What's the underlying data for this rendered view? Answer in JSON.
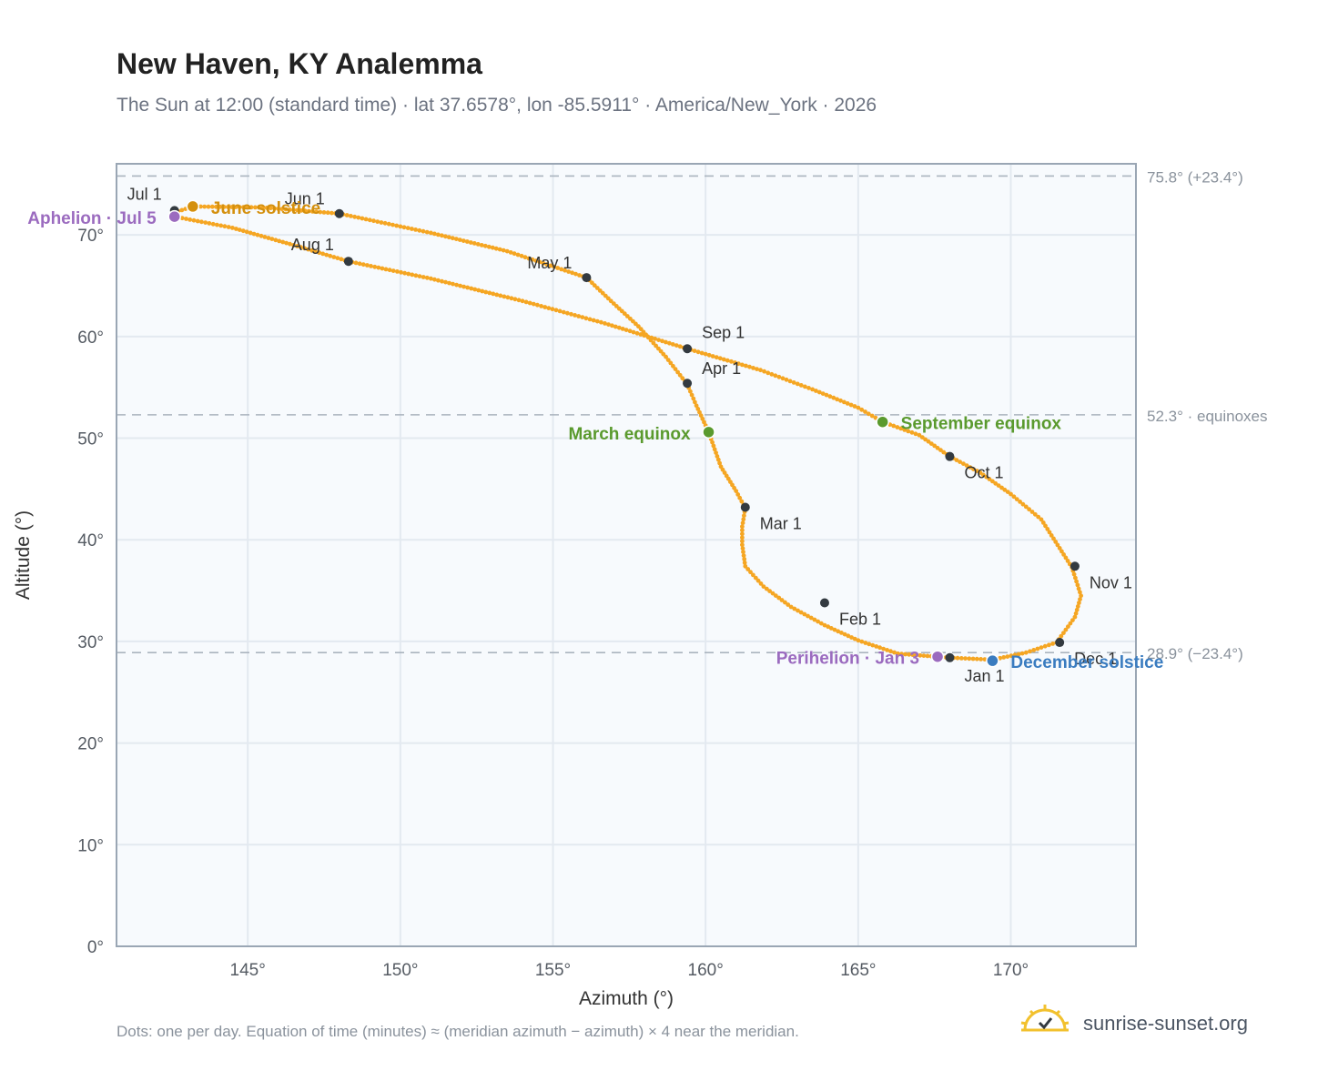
{
  "header": {
    "title": "New Haven, KY Analemma",
    "subtitle": "The Sun at 12:00 (standard time) · lat 37.6578°, lon -85.5911° · America/New_York · 2026"
  },
  "footer": {
    "note": "Dots: one per day. Equation of time (minutes) ≈ (meridian azimuth − azimuth) × 4 near the meridian.",
    "brand": "sunrise-sunset.org"
  },
  "colors": {
    "curve": "#f5a623",
    "month_dot": "#333a40",
    "solstice_june": "#d4900e",
    "solstice_december": "#3a7cc0",
    "equinox": "#5a9a2e",
    "apsis": "#9b6bbf",
    "plot_bg": "#f7fafd",
    "grid": "#e3e9f0",
    "frame": "#9aa6b4",
    "ref_line": "#aab4be"
  },
  "chart_data": {
    "type": "scatter",
    "xlabel": "Azimuth (°)",
    "ylabel": "Altitude (°)",
    "xlim": [
      140.7,
      174.1
    ],
    "ylim": [
      0,
      77
    ],
    "xticks": [
      145,
      150,
      155,
      160,
      165,
      170
    ],
    "xtick_labels": [
      "145°",
      "150°",
      "155°",
      "160°",
      "165°",
      "170°"
    ],
    "yticks": [
      0,
      10,
      20,
      30,
      40,
      50,
      60,
      70
    ],
    "ytick_labels": [
      "0°",
      "10°",
      "20°",
      "30°",
      "40°",
      "50°",
      "60°",
      "70°"
    ],
    "grid": true,
    "reference_lines": [
      {
        "y": 75.8,
        "label": "75.8° (+23.4°)"
      },
      {
        "y": 52.3,
        "label": "52.3° · equinoxes"
      },
      {
        "y": 28.9,
        "label": "28.9° (−23.4°)"
      }
    ],
    "series": [
      {
        "points_note": "one dot per day",
        "path": [
          [
            168.0,
            28.4
          ],
          [
            166.3,
            28.8
          ],
          [
            165.0,
            30.1
          ],
          [
            163.9,
            31.6
          ],
          [
            162.8,
            33.4
          ],
          [
            161.9,
            35.4
          ],
          [
            161.3,
            37.4
          ],
          [
            161.2,
            39.5
          ],
          [
            161.2,
            41.3
          ],
          [
            161.3,
            43.1
          ],
          [
            161.0,
            44.8
          ],
          [
            160.5,
            47.2
          ],
          [
            160.1,
            50.6
          ],
          [
            159.7,
            53.2
          ],
          [
            159.4,
            55.3
          ],
          [
            158.7,
            58.0
          ],
          [
            157.8,
            61.0
          ],
          [
            156.9,
            63.5
          ],
          [
            156.1,
            65.8
          ],
          [
            153.5,
            68.4
          ],
          [
            151.0,
            70.2
          ],
          [
            148.0,
            72.1
          ],
          [
            145.5,
            72.7
          ],
          [
            143.2,
            72.8
          ],
          [
            142.6,
            72.2
          ],
          [
            142.6,
            71.8
          ],
          [
            144.5,
            70.7
          ],
          [
            146.5,
            69.0
          ],
          [
            148.3,
            67.4
          ],
          [
            151.0,
            65.7
          ],
          [
            154.0,
            63.5
          ],
          [
            156.7,
            61.3
          ],
          [
            159.4,
            58.8
          ],
          [
            161.8,
            56.7
          ],
          [
            163.5,
            54.8
          ],
          [
            165.0,
            53.0
          ],
          [
            165.8,
            51.6
          ],
          [
            167.0,
            50.3
          ],
          [
            168.0,
            48.2
          ],
          [
            169.0,
            46.6
          ],
          [
            170.0,
            44.5
          ],
          [
            171.0,
            42.0
          ],
          [
            172.0,
            37.3
          ],
          [
            172.3,
            34.5
          ],
          [
            172.1,
            32.4
          ],
          [
            171.5,
            29.9
          ],
          [
            170.5,
            28.9
          ],
          [
            169.4,
            28.2
          ],
          [
            168.0,
            28.4
          ]
        ]
      }
    ],
    "month_markers": [
      {
        "label": "Jan 1",
        "az": 168.0,
        "alt": 28.4
      },
      {
        "label": "Feb 1",
        "az": 163.9,
        "alt": 33.8
      },
      {
        "label": "Mar 1",
        "az": 161.3,
        "alt": 43.2
      },
      {
        "label": "Apr 1",
        "az": 159.4,
        "alt": 55.4
      },
      {
        "label": "May 1",
        "az": 156.1,
        "alt": 65.8
      },
      {
        "label": "Jun 1",
        "az": 148.0,
        "alt": 72.1
      },
      {
        "label": "Jul 1",
        "az": 142.6,
        "alt": 72.4
      },
      {
        "label": "Aug 1",
        "az": 148.3,
        "alt": 67.4
      },
      {
        "label": "Sep 1",
        "az": 159.4,
        "alt": 58.8
      },
      {
        "label": "Oct 1",
        "az": 168.0,
        "alt": 48.2
      },
      {
        "label": "Nov 1",
        "az": 172.1,
        "alt": 37.4
      },
      {
        "label": "Dec 1",
        "az": 171.6,
        "alt": 29.9
      }
    ],
    "events": [
      {
        "label": "June solstice",
        "az": 143.2,
        "alt": 72.8,
        "color_key": "solstice_june"
      },
      {
        "label": "December solstice",
        "az": 169.4,
        "alt": 28.1,
        "color_key": "solstice_december"
      },
      {
        "label": "March equinox",
        "az": 160.1,
        "alt": 50.6,
        "color_key": "equinox"
      },
      {
        "label": "September equinox",
        "az": 165.8,
        "alt": 51.6,
        "color_key": "equinox"
      },
      {
        "label": "Aphelion · Jul 5",
        "az": 142.6,
        "alt": 71.8,
        "color_key": "apsis"
      },
      {
        "label": "Perihelion · Jan 3",
        "az": 167.6,
        "alt": 28.5,
        "color_key": "apsis"
      }
    ]
  }
}
